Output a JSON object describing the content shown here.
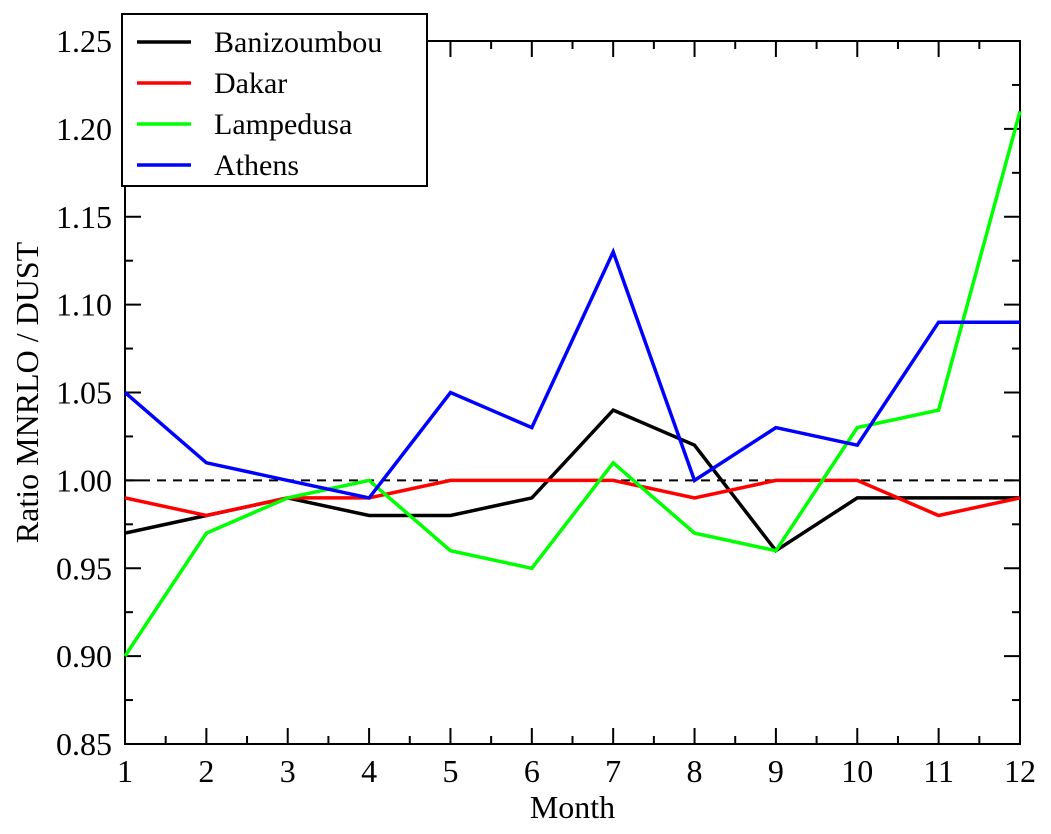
{
  "chart_data": {
    "type": "line",
    "title": "",
    "xlabel": "Month",
    "ylabel": "Ratio MNRLO / DUST",
    "xlim": [
      1,
      12
    ],
    "ylim": [
      0.85,
      1.25
    ],
    "x": [
      1,
      2,
      3,
      4,
      5,
      6,
      7,
      8,
      9,
      10,
      11,
      12
    ],
    "x_ticks": [
      "1",
      "2",
      "3",
      "4",
      "5",
      "6",
      "7",
      "8",
      "9",
      "10",
      "11",
      "12"
    ],
    "y_ticks": [
      0.85,
      0.9,
      0.95,
      1.0,
      1.05,
      1.1,
      1.15,
      1.2,
      1.25
    ],
    "y_tick_labels": [
      "0.85",
      "0.90",
      "0.95",
      "1.00",
      "1.05",
      "1.10",
      "1.15",
      "1.20",
      "1.25"
    ],
    "reference_line": {
      "y": 1.0,
      "style": "dashed",
      "color": "#000000"
    },
    "legend_position": "top-left",
    "grid": false,
    "series": [
      {
        "name": "Banizoumbou",
        "color": "#000000",
        "values": [
          0.97,
          0.98,
          0.99,
          0.98,
          0.98,
          0.99,
          1.04,
          1.02,
          0.96,
          0.99,
          0.99,
          0.99
        ]
      },
      {
        "name": "Dakar",
        "color": "#ff0000",
        "values": [
          0.99,
          0.98,
          0.99,
          0.99,
          1.0,
          1.0,
          1.0,
          0.99,
          1.0,
          1.0,
          0.98,
          0.99
        ]
      },
      {
        "name": "Lampedusa",
        "color": "#00ff00",
        "values": [
          0.9,
          0.97,
          0.99,
          1.0,
          0.96,
          0.95,
          1.01,
          0.97,
          0.96,
          1.03,
          1.04,
          1.21
        ]
      },
      {
        "name": "Athens",
        "color": "#0000ff",
        "values": [
          1.05,
          1.01,
          1.0,
          0.99,
          1.05,
          1.03,
          1.13,
          1.0,
          1.03,
          1.02,
          1.09,
          1.09
        ]
      }
    ]
  }
}
